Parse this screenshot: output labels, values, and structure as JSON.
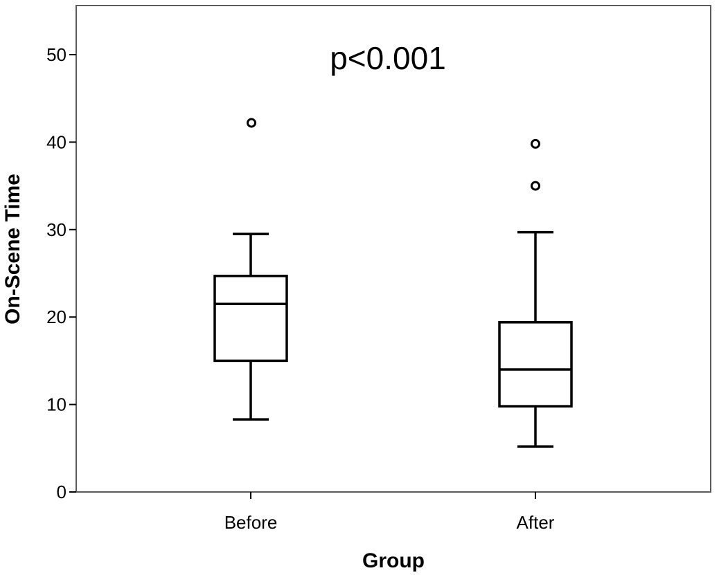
{
  "chart_data": {
    "type": "boxplot",
    "xlabel": "Group",
    "ylabel": "On-Scene Time",
    "ylim": [
      0,
      55
    ],
    "yticks": [
      0,
      10,
      20,
      30,
      40,
      50
    ],
    "categories": [
      "Before",
      "After"
    ],
    "annotation": "p<0.001",
    "grid": false,
    "boxes": [
      {
        "category": "Before",
        "whisker_low": 8.3,
        "q1": 15.0,
        "median": 21.5,
        "q3": 24.7,
        "whisker_high": 29.5,
        "outliers": [
          42.2
        ]
      },
      {
        "category": "After",
        "whisker_low": 5.2,
        "q1": 9.8,
        "median": 14.0,
        "q3": 19.4,
        "whisker_high": 29.7,
        "outliers": [
          39.8,
          35.0
        ]
      }
    ]
  },
  "colors": {
    "stroke": "#000000",
    "box_fill": "#ffffff",
    "background": "#ffffff"
  }
}
